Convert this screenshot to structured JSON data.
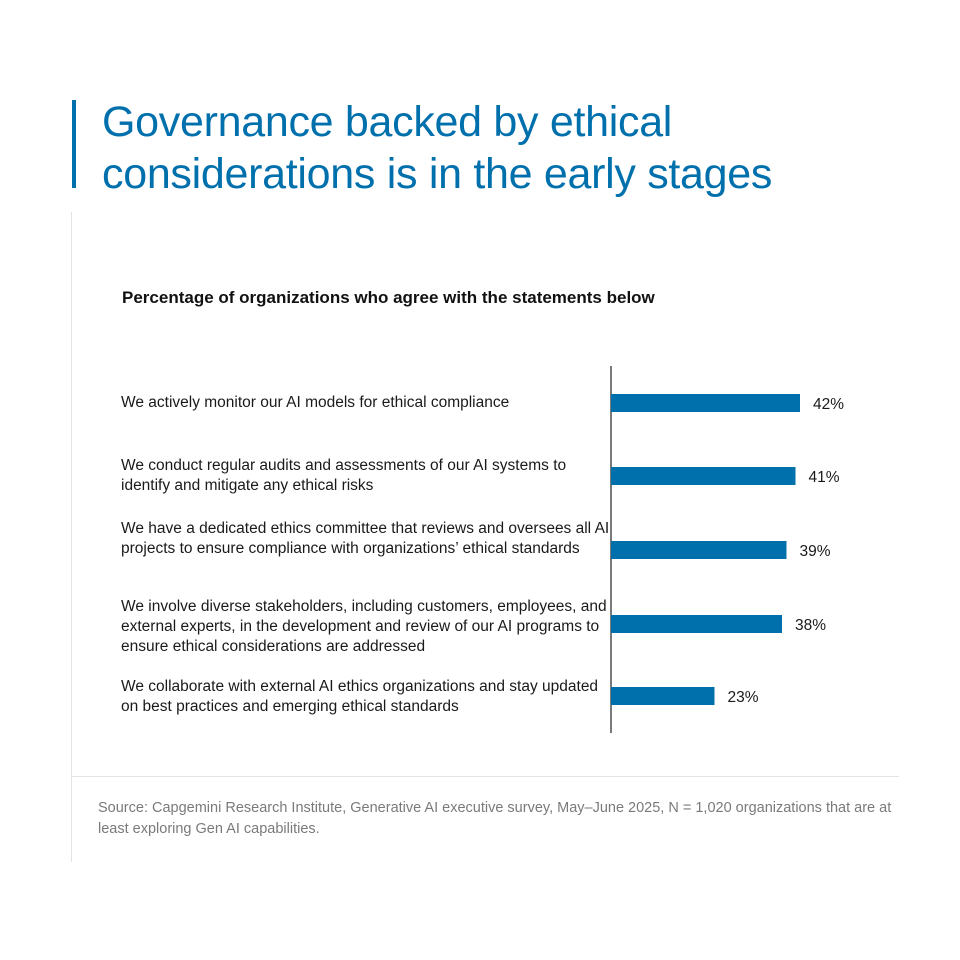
{
  "title_line1": "Governance backed by ethical",
  "title_line2": "considerations is in the early stages",
  "colors": {
    "accent": "#0070ad",
    "bar": "#0070ad",
    "text": "#1a1a1a",
    "source": "#7a7a7a"
  },
  "chart_data": {
    "type": "bar",
    "orientation": "horizontal",
    "title": "Percentage of organizations who agree with the statements below",
    "categories": [
      "We actively monitor our AI models for ethical compliance",
      "We conduct regular audits and assessments of our AI systems to identify and mitigate any ethical risks",
      "We have a dedicated ethics committee that reviews and oversees all AI projects to ensure compliance with organizations’ ethical standards",
      "We involve diverse stakeholders, including customers, employees, and external experts, in the development and review of our AI programs to ensure ethical considerations are addressed",
      "We collaborate with external AI ethics organizations and stay updated on best practices and emerging ethical standards"
    ],
    "values": [
      42,
      41,
      39,
      38,
      23
    ],
    "value_labels": [
      "42%",
      "41%",
      "39%",
      "38%",
      "23%"
    ],
    "unit": "%",
    "grid": false,
    "legend": "none"
  },
  "source": "Source: Capgemini Research Institute, Generative AI executive survey, May–June 2025, N = 1,020 organizations that are at least exploring Gen AI capabilities."
}
